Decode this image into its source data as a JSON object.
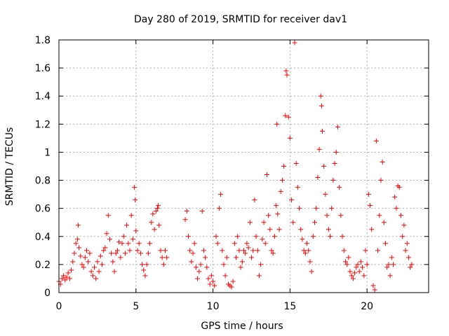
{
  "chart_data": {
    "type": "scatter",
    "title": "Day 280 of 2019, SRMTID for receiver dav1",
    "xlabel": "GPS time / hours",
    "ylabel": "SRMTID / TECUs",
    "xlim": [
      0,
      24
    ],
    "ylim": [
      0,
      1.8
    ],
    "x_ticks": [
      0,
      5,
      10,
      15,
      20
    ],
    "x_tick_labels": [
      "0",
      "5",
      "10",
      "15",
      "20"
    ],
    "y_ticks": [
      0,
      0.2,
      0.4,
      0.6,
      0.8,
      1,
      1.2,
      1.4,
      1.6,
      1.8
    ],
    "y_tick_labels": [
      "0",
      "0.2",
      "0.4",
      "0.6",
      "0.8",
      "1",
      "1.2",
      "1.4",
      "1.6",
      "1.8"
    ],
    "grid": true,
    "marker": "+",
    "color": "#ff0000",
    "series": [
      {
        "name": "SRMTID",
        "points": [
          [
            0.0,
            0.08
          ],
          [
            0.1,
            0.06
          ],
          [
            0.2,
            0.1
          ],
          [
            0.3,
            0.12
          ],
          [
            0.4,
            0.09
          ],
          [
            0.5,
            0.11
          ],
          [
            0.6,
            0.14
          ],
          [
            0.7,
            0.1
          ],
          [
            0.8,
            0.16
          ],
          [
            0.9,
            0.22
          ],
          [
            1.0,
            0.28
          ],
          [
            1.1,
            0.35
          ],
          [
            1.2,
            0.38
          ],
          [
            1.25,
            0.48
          ],
          [
            1.3,
            0.32
          ],
          [
            1.4,
            0.26
          ],
          [
            1.5,
            0.2
          ],
          [
            1.6,
            0.18
          ],
          [
            1.7,
            0.25
          ],
          [
            1.8,
            0.3
          ],
          [
            1.9,
            0.22
          ],
          [
            2.0,
            0.28
          ],
          [
            2.1,
            0.15
          ],
          [
            2.2,
            0.12
          ],
          [
            2.3,
            0.18
          ],
          [
            2.4,
            0.1
          ],
          [
            2.5,
            0.22
          ],
          [
            2.6,
            0.15
          ],
          [
            2.7,
            0.26
          ],
          [
            2.8,
            0.2
          ],
          [
            2.9,
            0.3
          ],
          [
            3.0,
            0.32
          ],
          [
            3.1,
            0.42
          ],
          [
            3.2,
            0.55
          ],
          [
            3.3,
            0.38
          ],
          [
            3.4,
            0.28
          ],
          [
            3.5,
            0.22
          ],
          [
            3.6,
            0.15
          ],
          [
            3.7,
            0.28
          ],
          [
            3.8,
            0.3
          ],
          [
            3.9,
            0.36
          ],
          [
            4.0,
            0.25
          ],
          [
            4.1,
            0.35
          ],
          [
            4.2,
            0.4
          ],
          [
            4.3,
            0.28
          ],
          [
            4.4,
            0.48
          ],
          [
            4.5,
            0.35
          ],
          [
            4.6,
            0.3
          ],
          [
            4.7,
            0.55
          ],
          [
            4.8,
            0.38
          ],
          [
            4.9,
            0.75
          ],
          [
            4.95,
            0.66
          ],
          [
            5.0,
            0.44
          ],
          [
            5.1,
            0.3
          ],
          [
            5.2,
            0.35
          ],
          [
            5.3,
            0.28
          ],
          [
            5.4,
            0.2
          ],
          [
            5.5,
            0.16
          ],
          [
            5.6,
            0.12
          ],
          [
            5.7,
            0.2
          ],
          [
            5.8,
            0.28
          ],
          [
            5.9,
            0.35
          ],
          [
            6.0,
            0.5
          ],
          [
            6.1,
            0.56
          ],
          [
            6.2,
            0.45
          ],
          [
            6.3,
            0.58
          ],
          [
            6.4,
            0.6
          ],
          [
            6.45,
            0.62
          ],
          [
            6.5,
            0.48
          ],
          [
            6.6,
            0.3
          ],
          [
            6.7,
            0.25
          ],
          [
            6.8,
            0.2
          ],
          [
            6.9,
            0.3
          ],
          [
            7.0,
            0.25
          ],
          [
            8.2,
            0.52
          ],
          [
            8.3,
            0.58
          ],
          [
            8.4,
            0.4
          ],
          [
            8.5,
            0.3
          ],
          [
            8.6,
            0.22
          ],
          [
            8.7,
            0.28
          ],
          [
            8.8,
            0.35
          ],
          [
            8.9,
            0.18
          ],
          [
            9.0,
            0.1
          ],
          [
            9.1,
            0.15
          ],
          [
            9.2,
            0.2
          ],
          [
            9.3,
            0.58
          ],
          [
            9.4,
            0.3
          ],
          [
            9.5,
            0.25
          ],
          [
            9.6,
            0.18
          ],
          [
            9.7,
            0.1
          ],
          [
            9.8,
            0.06
          ],
          [
            9.9,
            0.12
          ],
          [
            10.0,
            0.08
          ],
          [
            10.1,
            0.05
          ],
          [
            10.2,
            0.4
          ],
          [
            10.3,
            0.35
          ],
          [
            10.4,
            0.6
          ],
          [
            10.5,
            0.7
          ],
          [
            10.6,
            0.3
          ],
          [
            10.7,
            0.2
          ],
          [
            10.8,
            0.12
          ],
          [
            10.9,
            0.25
          ],
          [
            11.0,
            0.06
          ],
          [
            11.1,
            0.05
          ],
          [
            11.2,
            0.04
          ],
          [
            11.3,
            0.08
          ],
          [
            11.4,
            0.35
          ],
          [
            11.5,
            0.25
          ],
          [
            11.6,
            0.4
          ],
          [
            11.7,
            0.3
          ],
          [
            11.8,
            0.18
          ],
          [
            11.9,
            0.22
          ],
          [
            12.0,
            0.3
          ],
          [
            12.1,
            0.28
          ],
          [
            12.2,
            0.35
          ],
          [
            12.3,
            0.32
          ],
          [
            12.4,
            0.5
          ],
          [
            12.5,
            0.25
          ],
          [
            12.6,
            0.3
          ],
          [
            12.7,
            0.66
          ],
          [
            12.8,
            0.4
          ],
          [
            12.9,
            0.3
          ],
          [
            13.0,
            0.12
          ],
          [
            13.1,
            0.2
          ],
          [
            13.2,
            0.38
          ],
          [
            13.3,
            0.5
          ],
          [
            13.4,
            0.35
          ],
          [
            13.5,
            0.84
          ],
          [
            13.6,
            0.55
          ],
          [
            13.7,
            0.45
          ],
          [
            13.8,
            0.3
          ],
          [
            13.9,
            0.28
          ],
          [
            14.0,
            0.4
          ],
          [
            14.1,
            0.62
          ],
          [
            14.15,
            1.2
          ],
          [
            14.2,
            0.56
          ],
          [
            14.3,
            0.45
          ],
          [
            14.4,
            0.72
          ],
          [
            14.5,
            0.8
          ],
          [
            14.6,
            0.9
          ],
          [
            14.7,
            1.26
          ],
          [
            14.75,
            1.58
          ],
          [
            14.8,
            1.55
          ],
          [
            14.9,
            1.25
          ],
          [
            15.0,
            1.1
          ],
          [
            15.1,
            0.66
          ],
          [
            15.2,
            0.5
          ],
          [
            15.3,
            1.78
          ],
          [
            15.4,
            0.92
          ],
          [
            15.5,
            0.75
          ],
          [
            15.6,
            0.6
          ],
          [
            15.7,
            0.45
          ],
          [
            15.8,
            0.38
          ],
          [
            15.9,
            0.3
          ],
          [
            16.0,
            0.28
          ],
          [
            16.1,
            0.35
          ],
          [
            16.2,
            0.3
          ],
          [
            16.3,
            0.22
          ],
          [
            16.4,
            0.15
          ],
          [
            16.5,
            0.4
          ],
          [
            16.6,
            0.5
          ],
          [
            16.7,
            0.6
          ],
          [
            16.8,
            0.82
          ],
          [
            16.9,
            1.02
          ],
          [
            17.0,
            1.4
          ],
          [
            17.05,
            1.33
          ],
          [
            17.1,
            1.15
          ],
          [
            17.2,
            0.9
          ],
          [
            17.3,
            0.7
          ],
          [
            17.4,
            0.55
          ],
          [
            17.5,
            0.45
          ],
          [
            17.6,
            0.4
          ],
          [
            17.7,
            0.6
          ],
          [
            17.8,
            0.8
          ],
          [
            17.9,
            0.92
          ],
          [
            18.0,
            1.0
          ],
          [
            18.1,
            1.18
          ],
          [
            18.2,
            0.75
          ],
          [
            18.3,
            0.55
          ],
          [
            18.4,
            0.4
          ],
          [
            18.5,
            0.3
          ],
          [
            18.6,
            0.22
          ],
          [
            18.7,
            0.2
          ],
          [
            18.8,
            0.25
          ],
          [
            18.9,
            0.15
          ],
          [
            19.0,
            0.12
          ],
          [
            19.1,
            0.1
          ],
          [
            19.2,
            0.14
          ],
          [
            19.3,
            0.18
          ],
          [
            19.4,
            0.2
          ],
          [
            19.5,
            0.15
          ],
          [
            19.6,
            0.22
          ],
          [
            19.7,
            0.18
          ],
          [
            19.8,
            0.12
          ],
          [
            19.9,
            0.3
          ],
          [
            20.0,
            0.2
          ],
          [
            20.1,
            0.7
          ],
          [
            20.2,
            0.62
          ],
          [
            20.3,
            0.45
          ],
          [
            20.4,
            0.05
          ],
          [
            20.5,
            0.02
          ],
          [
            20.6,
            1.08
          ],
          [
            20.7,
            0.3
          ],
          [
            20.8,
            0.55
          ],
          [
            20.9,
            0.8
          ],
          [
            21.0,
            0.93
          ],
          [
            21.1,
            0.5
          ],
          [
            21.2,
            0.35
          ],
          [
            21.3,
            0.18
          ],
          [
            21.4,
            0.2
          ],
          [
            21.5,
            0.12
          ],
          [
            21.6,
            0.25
          ],
          [
            21.7,
            0.2
          ],
          [
            21.8,
            0.68
          ],
          [
            21.9,
            0.6
          ],
          [
            22.0,
            0.76
          ],
          [
            22.1,
            0.75
          ],
          [
            22.2,
            0.55
          ],
          [
            22.3,
            0.4
          ],
          [
            22.4,
            0.48
          ],
          [
            22.5,
            0.3
          ],
          [
            22.6,
            0.35
          ],
          [
            22.7,
            0.25
          ],
          [
            22.8,
            0.18
          ],
          [
            22.9,
            0.2
          ]
        ]
      }
    ]
  }
}
